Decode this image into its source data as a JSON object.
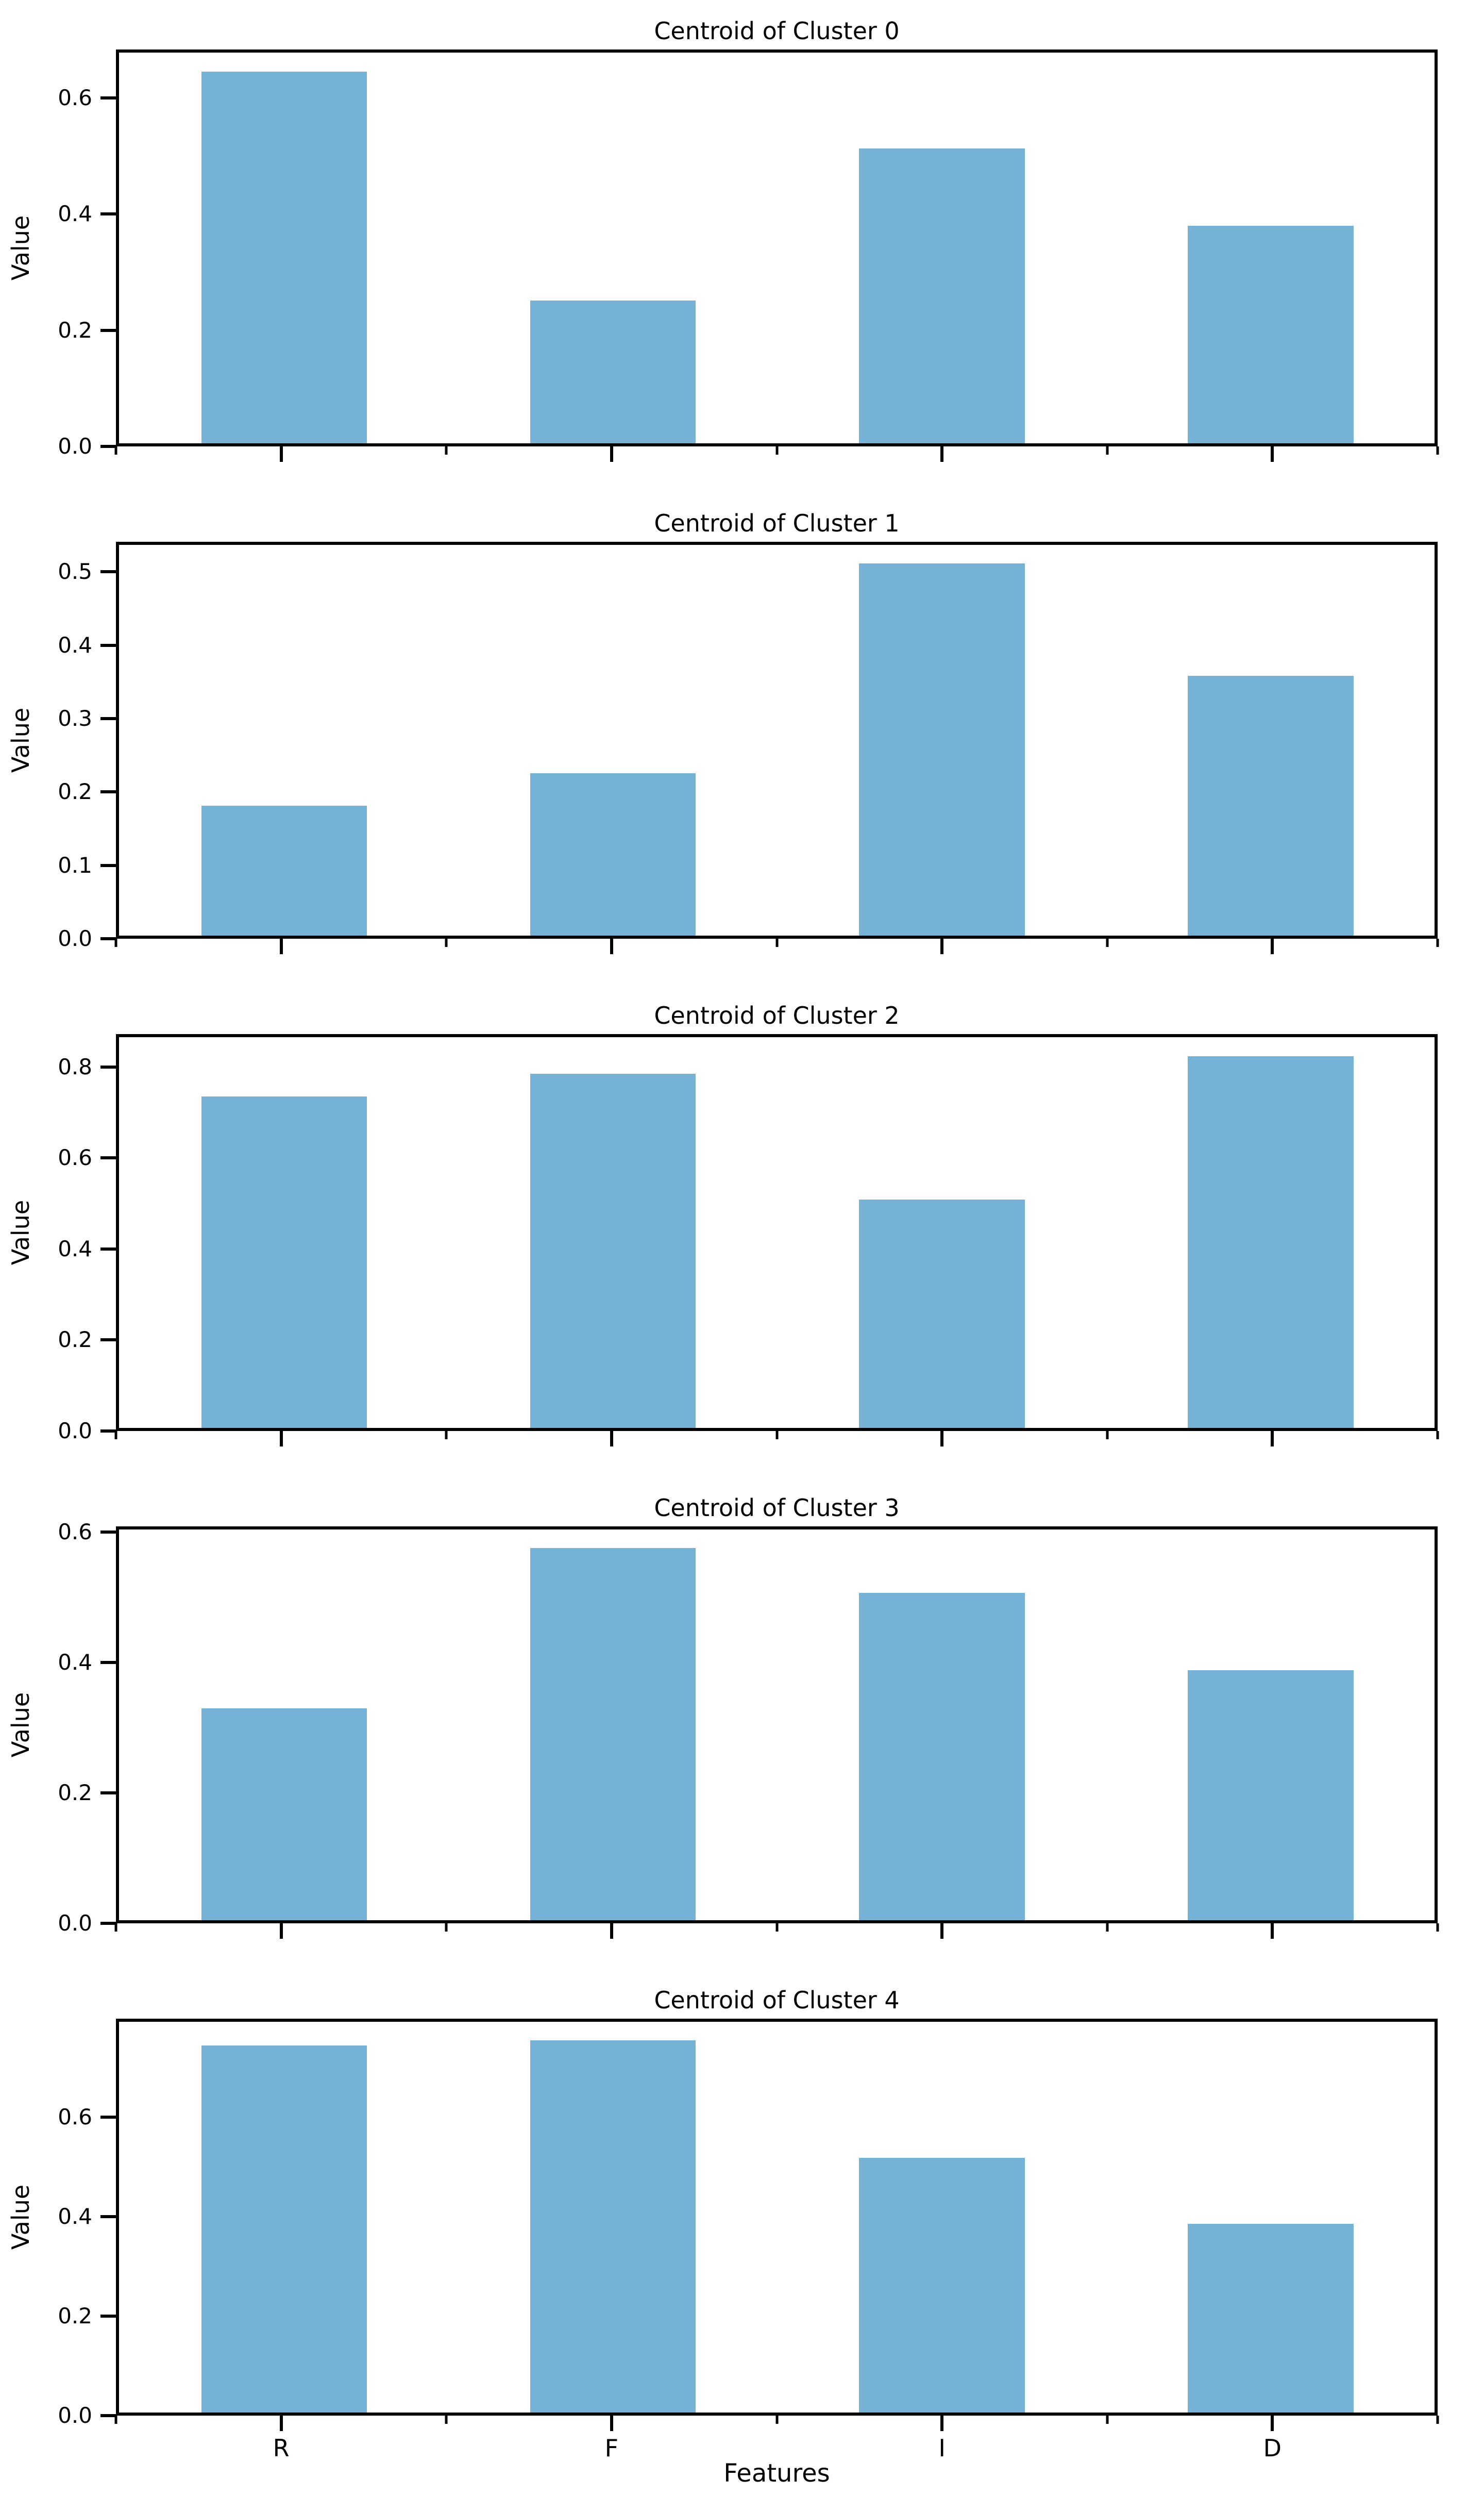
{
  "figure": {
    "background": "#ffffff",
    "bar_color": "#74b3d6",
    "axis_color": "#000000",
    "text_color": "#000000"
  },
  "xlabel": "Features",
  "chart_data": [
    {
      "type": "bar",
      "title": "Centroid of Cluster 0",
      "ylabel": "Value",
      "xlabel": "",
      "categories": [
        "R",
        "F",
        "I",
        "D"
      ],
      "values": [
        0.65,
        0.25,
        0.515,
        0.38
      ],
      "yticks": [
        0.0,
        0.2,
        0.4,
        0.6
      ],
      "ylim": [
        0,
        0.683
      ],
      "grid": false,
      "legend": "none"
    },
    {
      "type": "bar",
      "title": "Centroid of Cluster 1",
      "ylabel": "Value",
      "xlabel": "",
      "categories": [
        "R",
        "F",
        "I",
        "D"
      ],
      "values": [
        0.18,
        0.225,
        0.515,
        0.36
      ],
      "yticks": [
        0.0,
        0.1,
        0.2,
        0.3,
        0.4,
        0.5
      ],
      "ylim": [
        0,
        0.541
      ],
      "grid": false,
      "legend": "none"
    },
    {
      "type": "bar",
      "title": "Centroid of Cluster 2",
      "ylabel": "Value",
      "xlabel": "",
      "categories": [
        "R",
        "F",
        "I",
        "D"
      ],
      "values": [
        0.74,
        0.79,
        0.51,
        0.83
      ],
      "yticks": [
        0.0,
        0.2,
        0.4,
        0.6,
        0.8
      ],
      "ylim": [
        0,
        0.872
      ],
      "grid": false,
      "legend": "none"
    },
    {
      "type": "bar",
      "title": "Centroid of Cluster 3",
      "ylabel": "Value",
      "xlabel": "",
      "categories": [
        "R",
        "F",
        "I",
        "D"
      ],
      "values": [
        0.33,
        0.58,
        0.51,
        0.39
      ],
      "yticks": [
        0.0,
        0.2,
        0.4,
        0.6
      ],
      "ylim": [
        0,
        0.609
      ],
      "grid": false,
      "legend": "none"
    },
    {
      "type": "bar",
      "title": "Centroid of Cluster 4",
      "ylabel": "Value",
      "xlabel": "Features",
      "categories": [
        "R",
        "F",
        "I",
        "D"
      ],
      "values": [
        0.75,
        0.76,
        0.52,
        0.385
      ],
      "yticks": [
        0.0,
        0.2,
        0.4,
        0.6
      ],
      "ylim": [
        0,
        0.798
      ],
      "grid": false,
      "legend": "none"
    }
  ]
}
